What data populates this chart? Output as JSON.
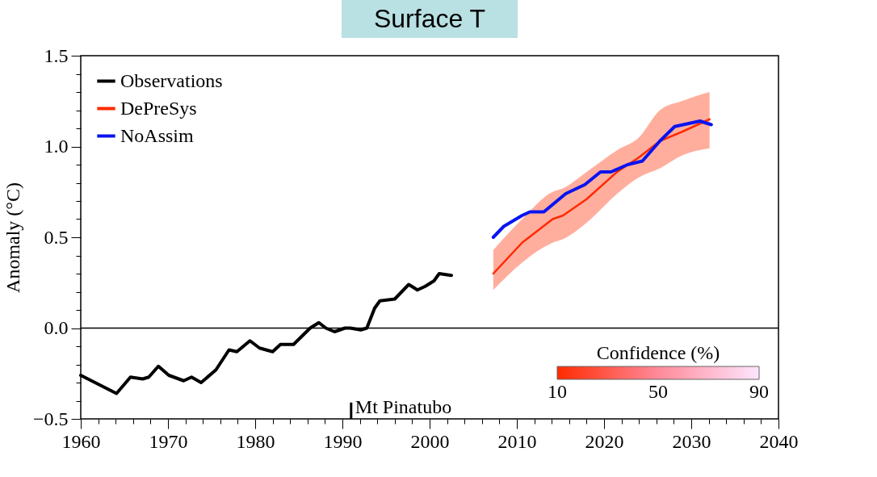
{
  "chart_data": {
    "type": "line",
    "title": "Surface T",
    "ylabel": "Anomaly (°C)",
    "legend": "top left",
    "grid": false,
    "annotations": [
      "Confidence (%)",
      "10",
      "50",
      "90"
    ],
    "xlim": [
      1960,
      2040
    ],
    "xticks": [
      1960,
      {
        "value": 1962,
        "label": null
      },
      {
        "value": 1964,
        "label": null
      },
      {
        "value": 1966,
        "label": null
      },
      {
        "value": 1968,
        "label": null
      },
      1970,
      {
        "value": 1972,
        "label": null
      },
      {
        "value": 1974,
        "label": null
      },
      {
        "value": 1976,
        "label": null
      },
      {
        "value": 1978,
        "label": null
      },
      1980,
      {
        "value": 1982,
        "label": null
      },
      {
        "value": 1984,
        "label": null
      },
      {
        "value": 1986,
        "label": null
      },
      {
        "value": 1988,
        "label": null
      },
      1990,
      {
        "value": 1992,
        "label": null
      },
      {
        "value": 1994,
        "label": null
      },
      {
        "value": 1996,
        "label": null
      },
      {
        "value": 1998,
        "label": null
      },
      2000,
      {
        "value": 2002,
        "label": null
      },
      {
        "value": 2004,
        "label": null
      },
      {
        "value": 2006,
        "label": null
      },
      {
        "value": 2008,
        "label": null
      },
      2010,
      {
        "value": 2012,
        "label": null
      },
      {
        "value": 2014,
        "label": null
      },
      {
        "value": 2016,
        "label": null
      },
      {
        "value": 2018,
        "label": null
      },
      2020,
      {
        "value": 2022,
        "label": null
      },
      {
        "value": 2024,
        "label": null
      },
      {
        "value": 2026,
        "label": null
      },
      {
        "value": 2028,
        "label": null
      },
      2030,
      {
        "value": 2032,
        "label": null
      },
      {
        "value": 2034,
        "label": null
      },
      {
        "value": 2036,
        "label": null
      },
      {
        "value": 2038,
        "label": null
      },
      2040
    ],
    "ylim": [
      -0.5,
      1.5
    ],
    "yticks": [
      {
        "value": -0.5,
        "label": "−0.5"
      },
      {
        "value": -0.4,
        "label": null
      },
      {
        "value": -0.3,
        "label": null
      },
      {
        "value": -0.2,
        "label": null
      },
      {
        "value": -0.1,
        "label": null
      },
      {
        "value": 0,
        "label": "0.0"
      },
      {
        "value": 0.1,
        "label": null
      },
      {
        "value": 0.2,
        "label": null
      },
      {
        "value": 0.3,
        "label": null
      },
      {
        "value": 0.4,
        "label": null
      },
      0.5,
      {
        "value": 0.6,
        "label": null
      },
      {
        "value": 0.7,
        "label": null
      },
      {
        "value": 0.8,
        "label": null
      },
      {
        "value": 0.9,
        "label": null
      },
      {
        "value": 1,
        "label": "1.0"
      },
      {
        "value": 1.1,
        "label": null
      },
      {
        "value": 1.2,
        "label": null
      },
      {
        "value": 1.3,
        "label": null
      },
      {
        "value": 1.4,
        "label": null
      },
      1.5
    ],
    "ref_lines": [
      {
        "axis": "y",
        "value": 0,
        "color": "#000000"
      },
      {
        "axis": "x",
        "value": 1991,
        "label": "Mt Pinatubo",
        "color": "#000000"
      }
    ],
    "series": [
      {
        "name": "Observations",
        "color": "#000000",
        "x": [
          1960,
          1964.1,
          1965.7,
          1967.1,
          1967.8,
          1968.9,
          1970.1,
          1971.8,
          1972.7,
          1973.8,
          1975.5,
          1977,
          1977.9,
          1979.4,
          1980.5,
          1982,
          1982.9,
          1984.4,
          1986.3,
          1987.3,
          1988.1,
          1989.1,
          1990.3,
          1990.9,
          1992.1,
          1992.8,
          1993.7,
          1994.3,
          1996,
          1997.6,
          1998.6,
          1999.5,
          2000.5,
          2001.1,
          2002.5
        ],
        "values": [
          -0.26,
          -0.36,
          -0.27,
          -0.28,
          -0.27,
          -0.21,
          -0.26,
          -0.29,
          -0.27,
          -0.3,
          -0.23,
          -0.12,
          -0.13,
          -0.07,
          -0.11,
          -0.13,
          -0.09,
          -0.09,
          0,
          0.03,
          0,
          -0.02,
          0,
          0,
          -0.01,
          0,
          0.11,
          0.15,
          0.16,
          0.24,
          0.21,
          0.23,
          0.26,
          0.3,
          0.29
        ]
      },
      {
        "name": "DePreSys",
        "color": "#ff2a00",
        "x": [
          2007.3,
          2010.6,
          2014.1,
          2015.3,
          2018,
          2021.5,
          2024,
          2026.4,
          2028.9,
          2032.1
        ],
        "values": [
          0.3,
          0.47,
          0.6,
          0.62,
          0.71,
          0.86,
          0.94,
          1.03,
          1.08,
          1.15
        ],
        "lower": [
          0.21,
          0.36,
          0.47,
          0.49,
          0.58,
          0.74,
          0.83,
          0.88,
          0.95,
          0.99
        ],
        "upper": [
          0.43,
          0.6,
          0.75,
          0.77,
          0.86,
          0.98,
          1.05,
          1.2,
          1.25,
          1.3
        ]
      },
      {
        "name": "NoAssim",
        "color": "#0a14f0",
        "x": [
          2007.3,
          2008.5,
          2010.6,
          2011.5,
          2013.1,
          2015.6,
          2017.8,
          2019.6,
          2020.8,
          2022.7,
          2024.4,
          2026.4,
          2028.1,
          2031,
          2032.3
        ],
        "values": [
          0.5,
          0.56,
          0.62,
          0.64,
          0.64,
          0.74,
          0.79,
          0.86,
          0.86,
          0.9,
          0.92,
          1.03,
          1.11,
          1.14,
          1.12
        ]
      }
    ]
  }
}
